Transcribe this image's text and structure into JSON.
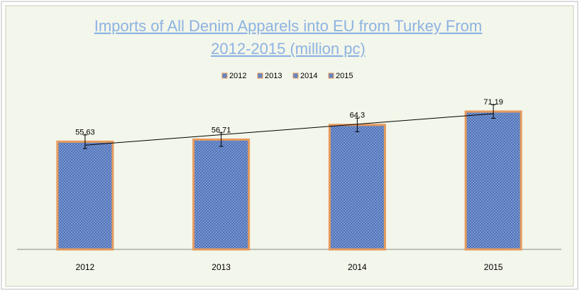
{
  "chart_data": {
    "type": "bar",
    "title_lines": [
      "Imports of All Denim Apparels into EU from Turkey From",
      "2012-2015 (million pc)"
    ],
    "categories": [
      "2012",
      "2013",
      "2014",
      "2015"
    ],
    "values": [
      55.63,
      56.71,
      64.3,
      71.19
    ],
    "errors": [
      3.5,
      3.5,
      3.5,
      3.5
    ],
    "legend": [
      "2012",
      "2013",
      "2014",
      "2015"
    ],
    "color": "#5b7fc4",
    "edge_color": "#e59a5c",
    "ylim": [
      0,
      80
    ],
    "trendline": true,
    "data_labels": true
  }
}
